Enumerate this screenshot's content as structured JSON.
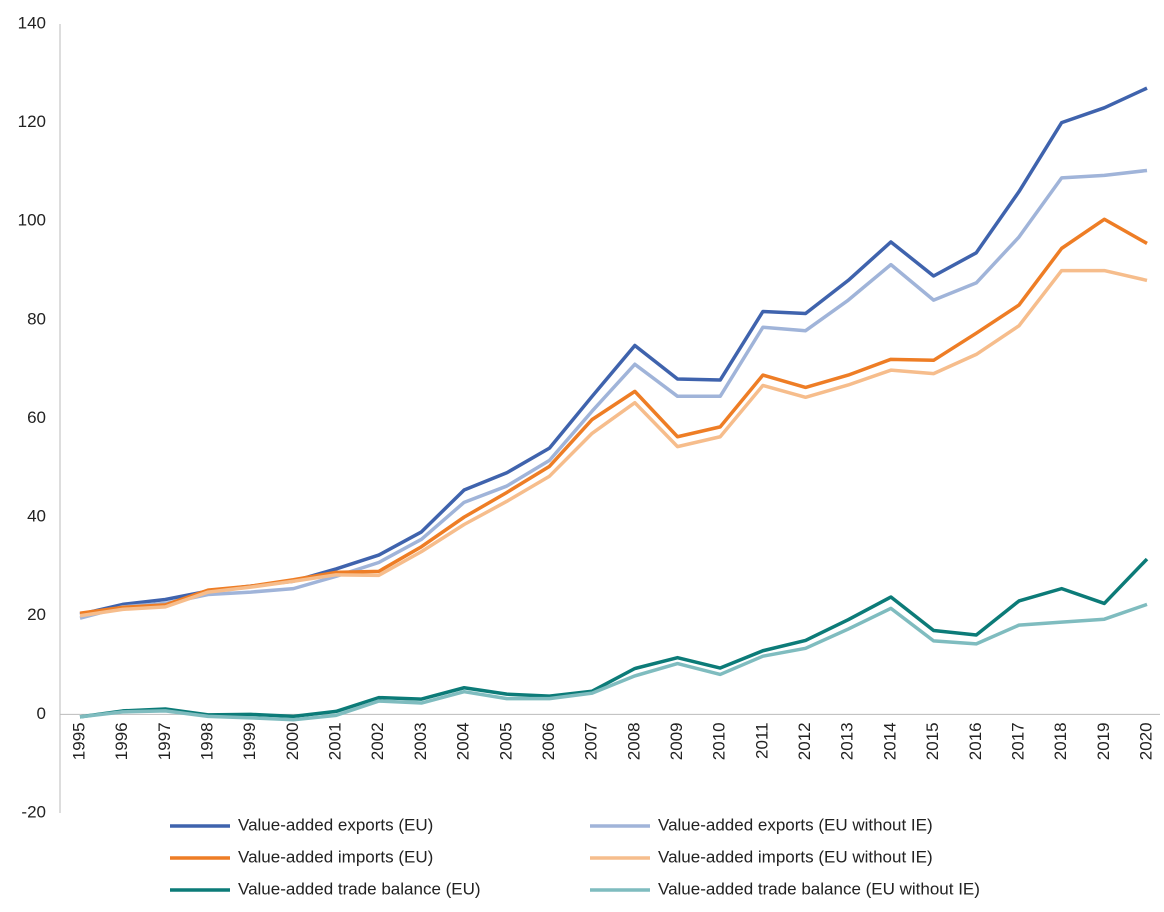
{
  "chart_data": {
    "type": "line",
    "categories": [
      "1995",
      "1996",
      "1997",
      "1998",
      "1999",
      "2000",
      "2001",
      "2002",
      "2003",
      "2004",
      "2005",
      "2006",
      "2007",
      "2008",
      "2009",
      "2010",
      "2011",
      "2012",
      "2013",
      "2014",
      "2015",
      "2016",
      "2017",
      "2018",
      "2019",
      "2020"
    ],
    "series": [
      {
        "name": "Value-added exports (EU)",
        "color": "#3f63ad",
        "values": [
          20.3,
          22.3,
          23.3,
          25,
          26,
          27,
          29.5,
          32.3,
          37,
          45.5,
          49,
          54,
          64.5,
          74.8,
          68,
          67.8,
          81.7,
          81.3,
          88,
          95.8,
          88.9,
          93.6,
          106,
          120,
          123,
          127
        ]
      },
      {
        "name": "Value-added exports (EU without IE)",
        "color": "#a0b4d9",
        "values": [
          19.5,
          21.8,
          22.5,
          24.3,
          24.8,
          25.5,
          28,
          30.8,
          35.5,
          43,
          46.3,
          51.5,
          61.5,
          71,
          64.5,
          64.5,
          78.5,
          77.8,
          84,
          91.2,
          84,
          87.5,
          96.8,
          108.8,
          109.3,
          110.3
        ]
      },
      {
        "name": "Value-added imports (EU)",
        "color": "#ee7d25",
        "values": [
          20.5,
          21.7,
          22.2,
          25.2,
          26,
          27.3,
          28.8,
          29,
          34,
          40,
          45,
          50.3,
          59.8,
          65.5,
          56.3,
          58.3,
          68.8,
          66.3,
          68.8,
          72,
          71.8,
          77.3,
          83,
          94.5,
          100.4,
          95.5
        ]
      },
      {
        "name": "Value-added imports (EU without IE)",
        "color": "#f6bd8c",
        "values": [
          20,
          21.3,
          21.8,
          24.8,
          25.8,
          27,
          28.3,
          28.2,
          33,
          38.5,
          43.2,
          48.3,
          57,
          63.2,
          54.3,
          56.3,
          66.7,
          64.3,
          66.8,
          69.8,
          69.1,
          73,
          78.8,
          90,
          90,
          88
        ]
      },
      {
        "name": "Value-added trade balance (EU)",
        "color": "#0c7b78",
        "values": [
          -0.5,
          0.7,
          1.1,
          -0.1,
          0,
          -0.4,
          0.6,
          3.4,
          3.1,
          5.4,
          4.1,
          3.7,
          4.7,
          9.3,
          11.5,
          9.4,
          12.9,
          15,
          19.2,
          23.8,
          17,
          16.1,
          23,
          25.5,
          22.5,
          31.5
        ]
      },
      {
        "name": "Value-added trade balance (EU without IE)",
        "color": "#7fbcbf",
        "values": [
          -0.5,
          0.5,
          0.7,
          -0.4,
          -0.7,
          -1.1,
          -0.2,
          2.7,
          2.3,
          4.6,
          3.2,
          3.2,
          4.3,
          7.8,
          10.3,
          8.1,
          11.8,
          13.4,
          17.3,
          21.5,
          14.9,
          14.3,
          18.1,
          18.7,
          19.3,
          22.3
        ]
      }
    ],
    "ylim": [
      -20,
      140
    ],
    "yticks": [
      -20,
      0,
      20,
      40,
      60,
      80,
      100,
      120,
      140
    ],
    "grid": false
  }
}
